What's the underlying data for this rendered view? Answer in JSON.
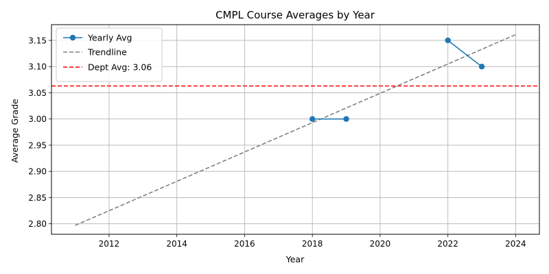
{
  "chart_data": {
    "type": "line",
    "title": "CMPL Course Averages by Year",
    "xlabel": "Year",
    "ylabel": "Average Grade",
    "xlim": [
      2010.3,
      2024.7
    ],
    "ylim": [
      2.78,
      3.18
    ],
    "xticks": [
      2012,
      2014,
      2016,
      2018,
      2020,
      2022,
      2024
    ],
    "yticks": [
      2.8,
      2.85,
      2.9,
      2.95,
      3.0,
      3.05,
      3.1,
      3.15
    ],
    "grid": true,
    "legend_position": "top-left",
    "series": [
      {
        "name": "Yearly Avg",
        "style": "solid-markers",
        "color": "#1f77b4",
        "segments": [
          [
            {
              "x": 2018,
              "y": 3.0
            },
            {
              "x": 2019,
              "y": 3.0
            }
          ],
          [
            {
              "x": 2022,
              "y": 3.15
            },
            {
              "x": 2023,
              "y": 3.1
            }
          ]
        ]
      },
      {
        "name": "Trendline",
        "style": "dashed",
        "color": "#808080",
        "points": [
          {
            "x": 2011,
            "y": 2.797
          },
          {
            "x": 2024,
            "y": 3.161
          }
        ]
      },
      {
        "name": "Dept Avg: 3.06",
        "style": "dashed-horizontal",
        "color": "#ff0000",
        "y": 3.063
      }
    ]
  }
}
